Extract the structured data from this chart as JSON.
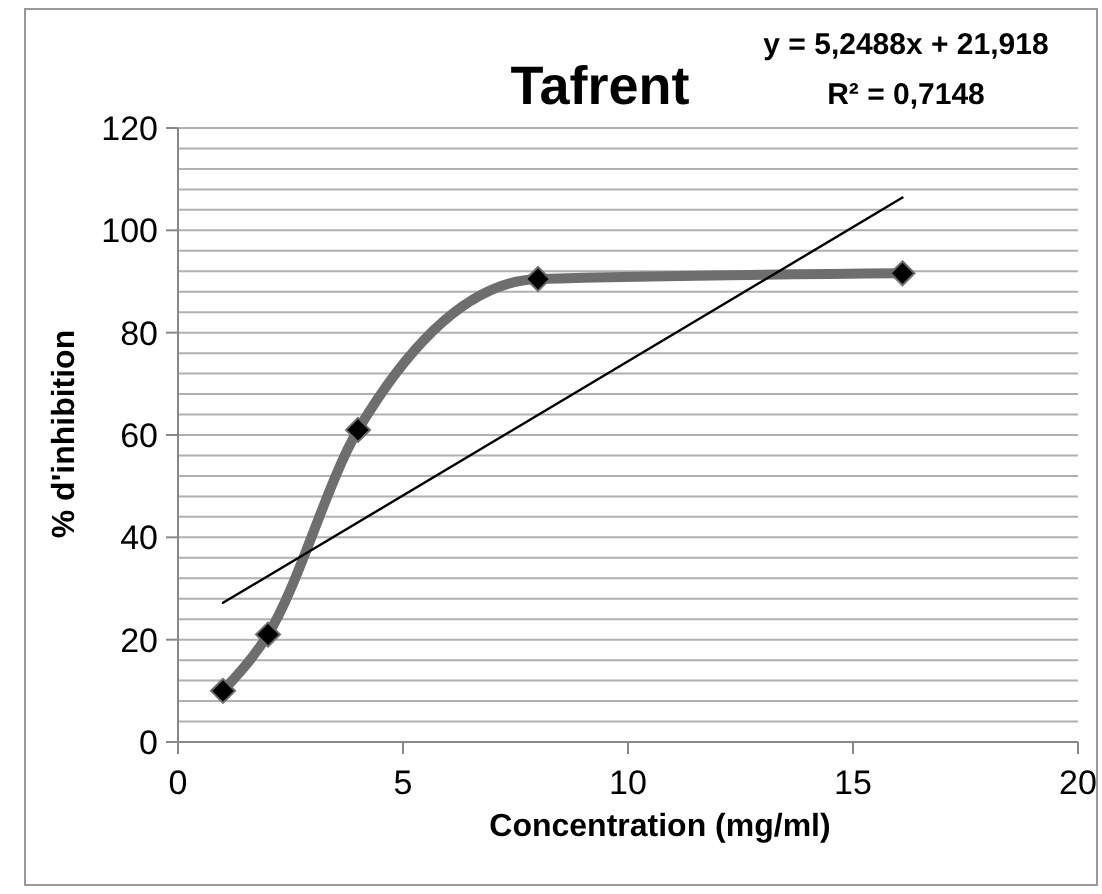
{
  "chart_data": {
    "type": "line",
    "title": "Tafrent",
    "xlabel": "Concentration (mg/ml)",
    "ylabel": "% d'inhibition",
    "annotations": [
      "y = 5,2488x + 21,918",
      "R² = 0,7148"
    ],
    "series": [
      {
        "color": "#6e6e6e",
        "marker": "diamond",
        "x": [
          1,
          2,
          4,
          8,
          16.1
        ],
        "values": [
          10,
          21,
          61,
          90.5,
          91.6
        ]
      },
      {
        "color": "#000000",
        "marker": "none",
        "x": [
          1,
          16.1
        ],
        "values": [
          27.2,
          106.4
        ]
      }
    ],
    "xlim": [
      0,
      20
    ],
    "xticks": [
      0,
      5,
      10,
      15,
      20
    ],
    "ylim": [
      0,
      120
    ],
    "yticks": [
      0,
      {
        "value": 4,
        "label": null
      },
      {
        "value": 8,
        "label": null
      },
      {
        "value": 12,
        "label": null
      },
      {
        "value": 16,
        "label": null
      },
      20,
      {
        "value": 24,
        "label": null
      },
      {
        "value": 28,
        "label": null
      },
      {
        "value": 32,
        "label": null
      },
      {
        "value": 36,
        "label": null
      },
      40,
      {
        "value": 44,
        "label": null
      },
      {
        "value": 48,
        "label": null
      },
      {
        "value": 52,
        "label": null
      },
      {
        "value": 56,
        "label": null
      },
      60,
      {
        "value": 64,
        "label": null
      },
      {
        "value": 68,
        "label": null
      },
      {
        "value": 72,
        "label": null
      },
      {
        "value": 76,
        "label": null
      },
      80,
      {
        "value": 84,
        "label": null
      },
      {
        "value": 88,
        "label": null
      },
      {
        "value": 92,
        "label": null
      },
      {
        "value": 96,
        "label": null
      },
      100,
      {
        "value": 104,
        "label": null
      },
      {
        "value": 108,
        "label": null
      },
      {
        "value": 112,
        "label": null
      },
      {
        "value": 116,
        "label": null
      },
      120
    ],
    "grid": "y"
  }
}
